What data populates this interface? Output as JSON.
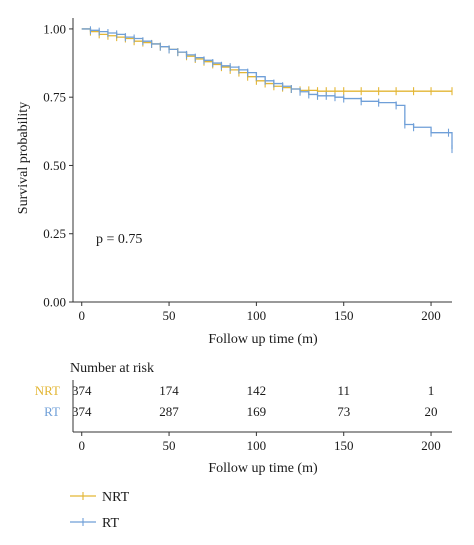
{
  "chart_data": [
    {
      "type": "line",
      "subtype": "kaplan-meier",
      "title": "",
      "xlabel": "Follow up time (m)",
      "ylabel": "Survival probability",
      "xlim": [
        -5,
        212
      ],
      "ylim": [
        0,
        1.04
      ],
      "xticks": [
        0,
        50,
        100,
        150,
        200
      ],
      "yticks": [
        "0.00",
        "0.25",
        "0.50",
        "0.75",
        "1.00"
      ],
      "annotation": "p = 0.75",
      "grid": false,
      "series": [
        {
          "name": "NRT",
          "color": "#E3B634",
          "x": [
            0,
            5,
            10,
            15,
            20,
            25,
            30,
            35,
            40,
            45,
            50,
            55,
            60,
            65,
            70,
            75,
            80,
            85,
            90,
            95,
            100,
            105,
            110,
            115,
            120,
            125,
            130,
            135,
            140,
            145,
            150,
            160,
            170,
            180,
            190,
            200,
            212
          ],
          "y": [
            1.0,
            0.99,
            0.98,
            0.975,
            0.97,
            0.965,
            0.955,
            0.95,
            0.945,
            0.935,
            0.925,
            0.915,
            0.9,
            0.89,
            0.88,
            0.87,
            0.86,
            0.85,
            0.84,
            0.825,
            0.81,
            0.8,
            0.79,
            0.785,
            0.78,
            0.775,
            0.775,
            0.772,
            0.772,
            0.772,
            0.772,
            0.772,
            0.772,
            0.772,
            0.772,
            0.772,
            0.772
          ]
        },
        {
          "name": "RT",
          "color": "#6F9FD8",
          "x": [
            0,
            5,
            10,
            15,
            20,
            25,
            30,
            35,
            40,
            45,
            50,
            55,
            60,
            65,
            70,
            75,
            80,
            85,
            90,
            95,
            100,
            105,
            110,
            115,
            120,
            125,
            130,
            135,
            140,
            145,
            150,
            160,
            170,
            180,
            185,
            190,
            200,
            210,
            212
          ],
          "y": [
            1.0,
            0.995,
            0.99,
            0.985,
            0.98,
            0.97,
            0.965,
            0.955,
            0.945,
            0.935,
            0.925,
            0.915,
            0.905,
            0.895,
            0.885,
            0.875,
            0.865,
            0.86,
            0.85,
            0.84,
            0.825,
            0.81,
            0.8,
            0.79,
            0.78,
            0.77,
            0.76,
            0.755,
            0.755,
            0.75,
            0.745,
            0.735,
            0.73,
            0.72,
            0.65,
            0.64,
            0.62,
            0.62,
            0.56
          ]
        }
      ]
    },
    {
      "type": "table",
      "title": "Number at risk",
      "xlabel": "Follow up time (m)",
      "xticks": [
        0,
        50,
        100,
        150,
        200
      ],
      "rows": [
        {
          "name": "NRT",
          "color": "#E3B634",
          "values": [
            "374",
            "174",
            "142",
            "11",
            "1"
          ]
        },
        {
          "name": "RT",
          "color": "#6F9FD8",
          "values": [
            "374",
            "287",
            "169",
            "73",
            "20"
          ]
        }
      ]
    }
  ],
  "legend": {
    "items": [
      {
        "label": "NRT",
        "color": "#E3B634"
      },
      {
        "label": "RT",
        "color": "#6F9FD8"
      }
    ]
  }
}
